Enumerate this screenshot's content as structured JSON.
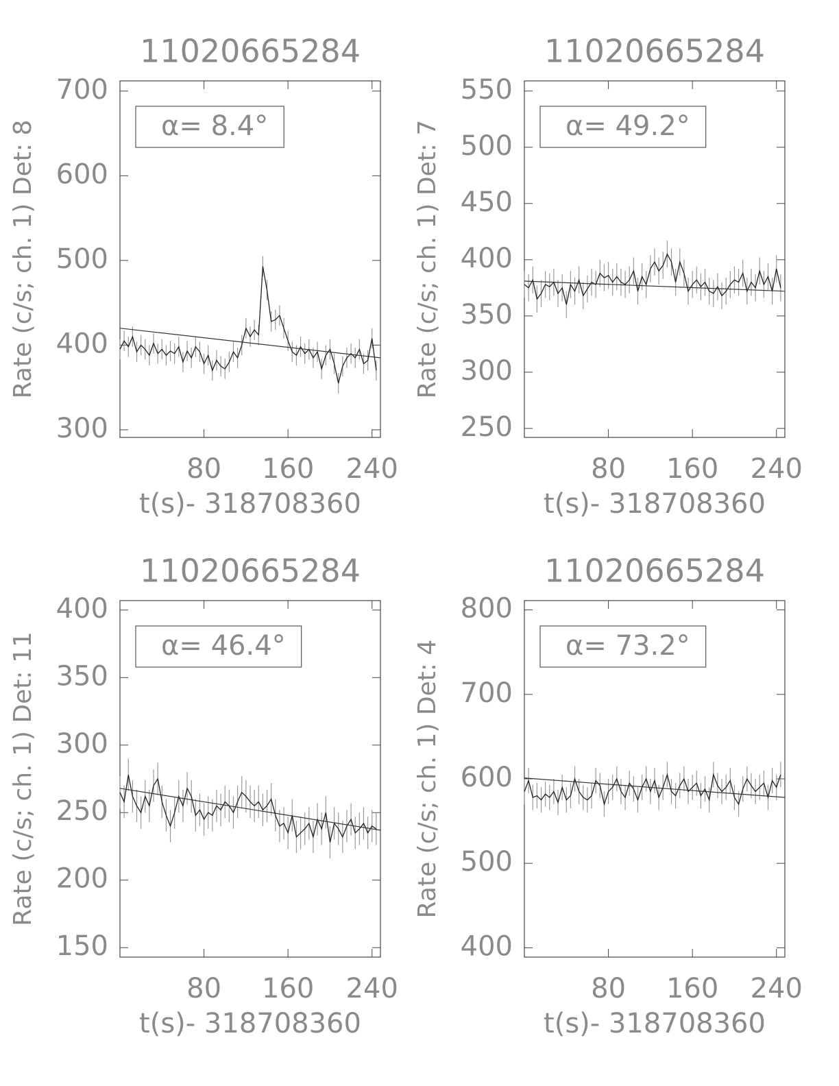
{
  "chart_data": [
    {
      "type": "line",
      "title": "11020665284",
      "xlabel": "t(s)- 318708360",
      "ylabel": "Rate (c/s; ch. 1) Det: 8",
      "annotation": "α= 8.4°",
      "xlim": [
        0,
        248
      ],
      "xticks": [
        80,
        160,
        240
      ],
      "ylim": [
        291,
        712
      ],
      "yticks": [
        300,
        400,
        500,
        600,
        700
      ],
      "color": "#222222",
      "x": [
        0,
        4,
        8,
        12,
        16,
        20,
        24,
        28,
        32,
        36,
        40,
        44,
        48,
        52,
        56,
        60,
        64,
        68,
        72,
        76,
        80,
        84,
        88,
        92,
        96,
        100,
        104,
        108,
        112,
        116,
        120,
        124,
        128,
        132,
        136,
        140,
        144,
        148,
        152,
        156,
        160,
        164,
        168,
        172,
        176,
        180,
        184,
        188,
        192,
        196,
        200,
        204,
        208,
        212,
        216,
        220,
        224,
        228,
        232,
        236,
        240,
        244
      ],
      "values": [
        395,
        405,
        398,
        410,
        392,
        400,
        395,
        388,
        402,
        390,
        395,
        388,
        393,
        390,
        398,
        380,
        393,
        385,
        398,
        392,
        378,
        388,
        370,
        382,
        375,
        372,
        380,
        392,
        385,
        400,
        420,
        410,
        418,
        412,
        493,
        465,
        428,
        430,
        435,
        420,
        405,
        392,
        388,
        398,
        390,
        395,
        385,
        392,
        372,
        388,
        395,
        378,
        355,
        375,
        385,
        390,
        385,
        395,
        378,
        382,
        408,
        370
      ],
      "error": 12,
      "fit": {
        "x": [
          0,
          248
        ],
        "values": [
          420,
          385
        ]
      }
    },
    {
      "type": "line",
      "title": "11020665284",
      "xlabel": "t(s)- 318708360",
      "ylabel": "Rate (c/s; ch. 1) Det: 7",
      "annotation": "α= 49.2°",
      "xlim": [
        0,
        248
      ],
      "xticks": [
        80,
        160,
        240
      ],
      "ylim": [
        242,
        559
      ],
      "yticks": [
        250,
        300,
        350,
        400,
        450,
        500,
        550
      ],
      "color": "#222222",
      "x": [
        0,
        4,
        8,
        12,
        16,
        20,
        24,
        28,
        32,
        36,
        40,
        44,
        48,
        52,
        56,
        60,
        64,
        68,
        72,
        76,
        80,
        84,
        88,
        92,
        96,
        100,
        104,
        108,
        112,
        116,
        120,
        124,
        128,
        132,
        136,
        140,
        144,
        148,
        152,
        156,
        160,
        164,
        168,
        172,
        176,
        180,
        184,
        188,
        192,
        196,
        200,
        204,
        208,
        212,
        216,
        220,
        224,
        228,
        232,
        236,
        240,
        244
      ],
      "values": [
        378,
        375,
        382,
        365,
        370,
        378,
        376,
        380,
        370,
        375,
        360,
        378,
        372,
        382,
        368,
        374,
        380,
        378,
        388,
        384,
        386,
        380,
        385,
        380,
        378,
        382,
        390,
        372,
        385,
        378,
        392,
        398,
        390,
        395,
        405,
        398,
        380,
        398,
        388,
        372,
        378,
        382,
        376,
        380,
        372,
        370,
        376,
        368,
        372,
        378,
        382,
        380,
        388,
        372,
        380,
        375,
        390,
        378,
        385,
        372,
        392,
        375
      ],
      "error": 12,
      "fit": {
        "x": [
          0,
          248
        ],
        "values": [
          381,
          372
        ]
      }
    },
    {
      "type": "line",
      "title": "11020665284",
      "xlabel": "t(s)- 318708360",
      "ylabel": "Rate (c/s; ch. 1) Det: 11",
      "annotation": "α= 46.4°",
      "xlim": [
        0,
        248
      ],
      "xticks": [
        80,
        160,
        240
      ],
      "ylim": [
        143,
        407
      ],
      "yticks": [
        150,
        200,
        250,
        300,
        350,
        400
      ],
      "color": "#222222",
      "x": [
        0,
        4,
        8,
        12,
        16,
        20,
        24,
        28,
        32,
        36,
        40,
        44,
        48,
        52,
        56,
        60,
        64,
        68,
        72,
        76,
        80,
        84,
        88,
        92,
        96,
        100,
        104,
        108,
        112,
        116,
        120,
        124,
        128,
        132,
        136,
        140,
        144,
        148,
        152,
        156,
        160,
        164,
        168,
        172,
        176,
        180,
        184,
        188,
        192,
        196,
        200,
        204,
        208,
        212,
        216,
        220,
        224,
        228,
        232,
        236,
        240,
        244
      ],
      "values": [
        265,
        258,
        278,
        262,
        255,
        250,
        262,
        255,
        270,
        275,
        258,
        248,
        240,
        250,
        262,
        255,
        268,
        262,
        248,
        252,
        245,
        250,
        248,
        255,
        252,
        258,
        255,
        250,
        258,
        265,
        262,
        258,
        255,
        258,
        252,
        255,
        260,
        248,
        240,
        242,
        235,
        248,
        232,
        235,
        238,
        242,
        232,
        245,
        238,
        250,
        228,
        242,
        238,
        232,
        240,
        245,
        235,
        238,
        242,
        235,
        240,
        238
      ],
      "error": 12,
      "fit": {
        "x": [
          0,
          248
        ],
        "values": [
          268,
          237
        ]
      }
    },
    {
      "type": "line",
      "title": "11020665284",
      "xlabel": "t(s)- 318708360",
      "ylabel": "Rate (c/s; ch. 1) Det: 4",
      "annotation": "α= 73.2°",
      "xlim": [
        0,
        248
      ],
      "xticks": [
        80,
        160,
        240
      ],
      "ylim": [
        389,
        811
      ],
      "yticks": [
        400,
        500,
        600,
        700,
        800
      ],
      "color": "#222222",
      "x": [
        0,
        4,
        8,
        12,
        16,
        20,
        24,
        28,
        32,
        36,
        40,
        44,
        48,
        52,
        56,
        60,
        64,
        68,
        72,
        76,
        80,
        84,
        88,
        92,
        96,
        100,
        104,
        108,
        112,
        116,
        120,
        124,
        128,
        132,
        136,
        140,
        144,
        148,
        152,
        156,
        160,
        164,
        168,
        172,
        176,
        180,
        184,
        188,
        192,
        196,
        200,
        204,
        208,
        212,
        216,
        220,
        224,
        228,
        232,
        236,
        240,
        244
      ],
      "values": [
        585,
        598,
        578,
        580,
        575,
        582,
        578,
        585,
        572,
        590,
        575,
        580,
        600,
        585,
        578,
        575,
        580,
        598,
        592,
        570,
        585,
        590,
        600,
        585,
        578,
        595,
        588,
        575,
        590,
        600,
        585,
        598,
        578,
        590,
        605,
        585,
        580,
        592,
        600,
        585,
        590,
        595,
        580,
        588,
        575,
        605,
        592,
        585,
        590,
        598,
        578,
        570,
        588,
        600,
        592,
        585,
        590,
        595,
        578,
        598,
        590,
        605
      ],
      "error": 15,
      "fit": {
        "x": [
          0,
          248
        ],
        "values": [
          601,
          578
        ]
      }
    }
  ]
}
